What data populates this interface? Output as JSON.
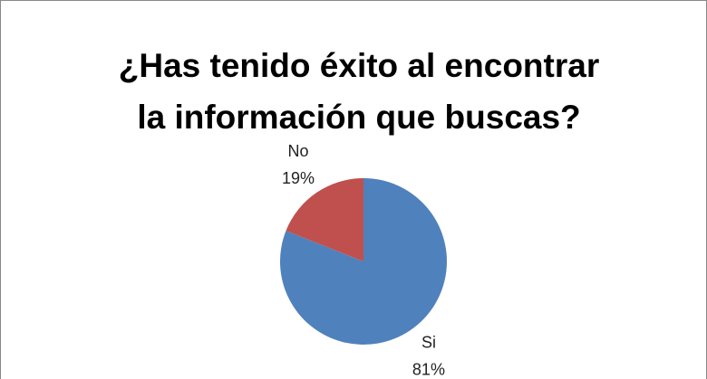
{
  "chart_data": {
    "type": "pie",
    "title": [
      "¿Has tenido éxito al encontrar",
      "la información que buscas?"
    ],
    "categories": [
      "Si",
      "No"
    ],
    "values": [
      81,
      19
    ],
    "value_labels": [
      "81%",
      "19%"
    ],
    "colors": [
      "#4f81bd",
      "#c0504d"
    ]
  }
}
